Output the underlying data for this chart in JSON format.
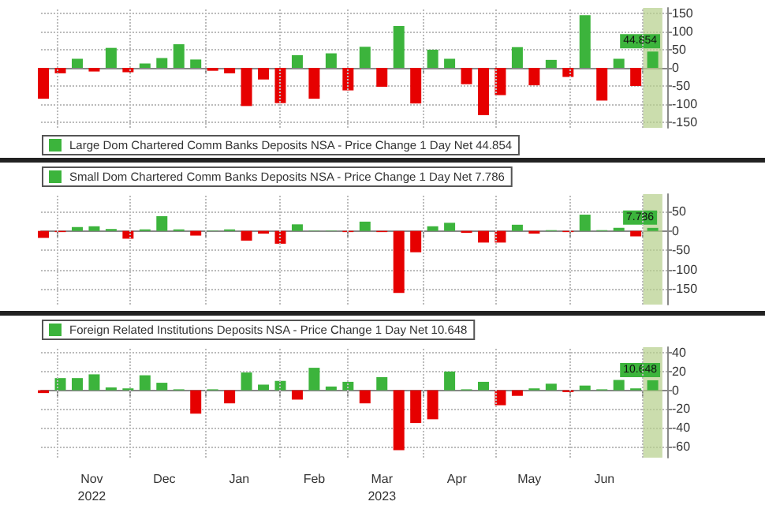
{
  "chart_data": [
    {
      "type": "bar",
      "x": [
        "2022-10-26",
        "2022-11-02",
        "2022-11-09",
        "2022-11-16",
        "2022-11-23",
        "2022-11-30",
        "2022-12-07",
        "2022-12-14",
        "2022-12-21",
        "2022-12-28",
        "2023-01-04",
        "2023-01-11",
        "2023-01-18",
        "2023-01-25",
        "2023-02-01",
        "2023-02-08",
        "2023-02-15",
        "2023-02-22",
        "2023-03-01",
        "2023-03-08",
        "2023-03-15",
        "2023-03-22",
        "2023-03-29",
        "2023-04-05",
        "2023-04-12",
        "2023-04-19",
        "2023-04-26",
        "2023-05-03",
        "2023-05-10",
        "2023-05-17",
        "2023-05-24",
        "2023-05-31",
        "2023-06-07",
        "2023-06-14",
        "2023-06-21",
        "2023-06-28",
        "2023-07-05"
      ],
      "series": [
        {
          "name": "Large Dom Chartered Comm Banks Deposits NSA - Price Change 1 Day Net 44.854",
          "color": "#3cb43c",
          "values": [
            -85,
            -15,
            25,
            -10,
            55,
            -12,
            12,
            27,
            65,
            23,
            -8,
            -15,
            -105,
            -32,
            -97,
            35,
            -85,
            40,
            -62,
            58,
            -52,
            115,
            -98,
            50,
            25,
            -45,
            -130,
            -75,
            57,
            -48,
            22,
            -25,
            145,
            -90,
            25,
            -50,
            44.854
          ],
          "colors": [
            "#e60000",
            "#e60000",
            "#3cb43c",
            "#e60000",
            "#3cb43c",
            "#e60000",
            "#3cb43c",
            "#3cb43c",
            "#3cb43c",
            "#3cb43c",
            "#e60000",
            "#e60000",
            "#e60000",
            "#e60000",
            "#e60000",
            "#3cb43c",
            "#e60000",
            "#3cb43c",
            "#e60000",
            "#3cb43c",
            "#e60000",
            "#3cb43c",
            "#e60000",
            "#3cb43c",
            "#3cb43c",
            "#e60000",
            "#e60000",
            "#e60000",
            "#3cb43c",
            "#e60000",
            "#3cb43c",
            "#e60000",
            "#3cb43c",
            "#e60000",
            "#3cb43c",
            "#e60000",
            "#3cb43c"
          ],
          "value_labels": [
            null,
            null,
            null,
            null,
            null,
            null,
            null,
            null,
            null,
            null,
            null,
            null,
            null,
            null,
            null,
            null,
            null,
            null,
            null,
            null,
            null,
            null,
            null,
            null,
            null,
            null,
            null,
            null,
            null,
            null,
            null,
            null,
            null,
            null,
            null,
            null,
            "44.854"
          ]
        }
      ],
      "xlim": [
        "2022-10-25",
        "2023-07-11"
      ],
      "xticks": [
        {
          "value": "2022-11-01",
          "label": null
        },
        {
          "value": "2022-12-01",
          "label": null
        },
        {
          "value": "2023-01-01",
          "label": null
        },
        {
          "value": "2023-02-01",
          "label": null
        },
        {
          "value": "2023-03-01",
          "label": null
        },
        {
          "value": "2023-04-01",
          "label": null
        },
        {
          "value": "2023-05-01",
          "label": null
        },
        {
          "value": "2023-06-01",
          "label": null
        },
        {
          "value": "2023-07-01",
          "label": null
        }
      ],
      "ylim": [
        -165,
        165
      ],
      "yticks": [
        -150,
        -100,
        -50,
        0,
        50,
        100,
        150
      ],
      "bands": [
        {
          "axis": "x",
          "from": "2023-07-01",
          "to": "2023-07-09",
          "color": "#b5cf8a"
        }
      ],
      "grid": true,
      "legend": "bottom left",
      "tick_labels": "y"
    },
    {
      "type": "bar",
      "x": [
        "2022-10-26",
        "2022-11-02",
        "2022-11-09",
        "2022-11-16",
        "2022-11-23",
        "2022-11-30",
        "2022-12-07",
        "2022-12-14",
        "2022-12-21",
        "2022-12-28",
        "2023-01-04",
        "2023-01-11",
        "2023-01-18",
        "2023-01-25",
        "2023-02-01",
        "2023-02-08",
        "2023-02-15",
        "2023-02-22",
        "2023-03-01",
        "2023-03-08",
        "2023-03-15",
        "2023-03-22",
        "2023-03-29",
        "2023-04-05",
        "2023-04-12",
        "2023-04-19",
        "2023-04-26",
        "2023-05-03",
        "2023-05-10",
        "2023-05-17",
        "2023-05-24",
        "2023-05-31",
        "2023-06-07",
        "2023-06-14",
        "2023-06-21",
        "2023-06-28",
        "2023-07-05"
      ],
      "series": [
        {
          "name": "Small Dom Chartered Comm Banks Deposits NSA - Price Change 1 Day Net 7.786",
          "color": "#3cb43c",
          "values": [
            -18,
            -3,
            10,
            12,
            5,
            -20,
            4,
            38,
            4,
            -12,
            1,
            4,
            -25,
            -7,
            -33,
            17,
            1,
            1,
            -3,
            24,
            -3,
            -160,
            -55,
            12,
            21,
            -5,
            -30,
            -30,
            16,
            -7,
            2,
            -3,
            42,
            2,
            8,
            -14,
            7.786
          ],
          "colors": [
            "#e60000",
            "#e60000",
            "#3cb43c",
            "#3cb43c",
            "#3cb43c",
            "#e60000",
            "#3cb43c",
            "#3cb43c",
            "#3cb43c",
            "#e60000",
            "#3cb43c",
            "#3cb43c",
            "#e60000",
            "#e60000",
            "#e60000",
            "#3cb43c",
            "#3cb43c",
            "#3cb43c",
            "#e60000",
            "#3cb43c",
            "#e60000",
            "#e60000",
            "#e60000",
            "#3cb43c",
            "#3cb43c",
            "#e60000",
            "#e60000",
            "#e60000",
            "#3cb43c",
            "#e60000",
            "#3cb43c",
            "#e60000",
            "#3cb43c",
            "#3cb43c",
            "#3cb43c",
            "#e60000",
            "#3cb43c"
          ],
          "value_labels": [
            null,
            null,
            null,
            null,
            null,
            null,
            null,
            null,
            null,
            null,
            null,
            null,
            null,
            null,
            null,
            null,
            null,
            null,
            null,
            null,
            null,
            null,
            null,
            null,
            null,
            null,
            null,
            null,
            null,
            null,
            null,
            null,
            null,
            null,
            null,
            null,
            "7.786"
          ]
        }
      ],
      "xlim": [
        "2022-10-25",
        "2023-07-11"
      ],
      "xticks": [
        {
          "value": "2022-11-01",
          "label": null
        },
        {
          "value": "2022-12-01",
          "label": null
        },
        {
          "value": "2023-01-01",
          "label": null
        },
        {
          "value": "2023-02-01",
          "label": null
        },
        {
          "value": "2023-03-01",
          "label": null
        },
        {
          "value": "2023-04-01",
          "label": null
        },
        {
          "value": "2023-05-01",
          "label": null
        },
        {
          "value": "2023-06-01",
          "label": null
        },
        {
          "value": "2023-07-01",
          "label": null
        }
      ],
      "ylim": [
        -190,
        95
      ],
      "yticks": [
        -150,
        -100,
        -50,
        0,
        50
      ],
      "bands": [
        {
          "axis": "x",
          "from": "2023-07-01",
          "to": "2023-07-09",
          "color": "#b5cf8a"
        }
      ],
      "grid": true,
      "legend": "top left",
      "tick_labels": "y"
    },
    {
      "type": "bar",
      "x": [
        "2022-10-26",
        "2022-11-02",
        "2022-11-09",
        "2022-11-16",
        "2022-11-23",
        "2022-11-30",
        "2022-12-07",
        "2022-12-14",
        "2022-12-21",
        "2022-12-28",
        "2023-01-04",
        "2023-01-11",
        "2023-01-18",
        "2023-01-25",
        "2023-02-01",
        "2023-02-08",
        "2023-02-15",
        "2023-02-22",
        "2023-03-01",
        "2023-03-08",
        "2023-03-15",
        "2023-03-22",
        "2023-03-29",
        "2023-04-05",
        "2023-04-12",
        "2023-04-19",
        "2023-04-26",
        "2023-05-03",
        "2023-05-10",
        "2023-05-17",
        "2023-05-24",
        "2023-05-31",
        "2023-06-07",
        "2023-06-14",
        "2023-06-21",
        "2023-06-28",
        "2023-07-05"
      ],
      "series": [
        {
          "name": "Foreign Related Institutions Deposits NSA - Price Change 1 Day Net 10.648",
          "color": "#3cb43c",
          "values": [
            -3,
            13,
            13,
            17,
            3,
            2,
            16,
            8,
            1,
            -25,
            1,
            -14,
            19,
            6,
            10,
            -10,
            24,
            4,
            9,
            -14,
            14,
            -64,
            -35,
            -31,
            20,
            1,
            9,
            -16,
            -6,
            2,
            7,
            -2,
            5,
            1,
            11,
            2,
            10.648
          ],
          "colors": [
            "#e60000",
            "#3cb43c",
            "#3cb43c",
            "#3cb43c",
            "#3cb43c",
            "#3cb43c",
            "#3cb43c",
            "#3cb43c",
            "#3cb43c",
            "#e60000",
            "#3cb43c",
            "#e60000",
            "#3cb43c",
            "#3cb43c",
            "#3cb43c",
            "#e60000",
            "#3cb43c",
            "#3cb43c",
            "#3cb43c",
            "#e60000",
            "#3cb43c",
            "#e60000",
            "#e60000",
            "#e60000",
            "#3cb43c",
            "#3cb43c",
            "#3cb43c",
            "#e60000",
            "#e60000",
            "#3cb43c",
            "#3cb43c",
            "#e60000",
            "#3cb43c",
            "#3cb43c",
            "#3cb43c",
            "#3cb43c",
            "#3cb43c"
          ],
          "value_labels": [
            null,
            null,
            null,
            null,
            null,
            null,
            null,
            null,
            null,
            null,
            null,
            null,
            null,
            null,
            null,
            null,
            null,
            null,
            null,
            null,
            null,
            null,
            null,
            null,
            null,
            null,
            null,
            null,
            null,
            null,
            null,
            null,
            null,
            null,
            null,
            null,
            "10.648"
          ]
        }
      ],
      "xlim": [
        "2022-10-25",
        "2023-07-11"
      ],
      "xticks": [
        {
          "value": "2022-11-01",
          "label": null
        },
        {
          "value": "2022-11-15",
          "label": "Nov\n2022"
        },
        {
          "value": "2022-12-01",
          "label": null
        },
        {
          "value": "2022-12-15",
          "label": "Dec"
        },
        {
          "value": "2023-01-01",
          "label": null
        },
        {
          "value": "2023-01-15",
          "label": "Jan"
        },
        {
          "value": "2023-02-01",
          "label": null
        },
        {
          "value": "2023-02-15",
          "label": "Feb"
        },
        {
          "value": "2023-03-01",
          "label": null
        },
        {
          "value": "2023-03-15",
          "label": "Mar\n2023"
        },
        {
          "value": "2023-04-01",
          "label": null
        },
        {
          "value": "2023-04-15",
          "label": "Apr"
        },
        {
          "value": "2023-05-01",
          "label": null
        },
        {
          "value": "2023-05-15",
          "label": "May"
        },
        {
          "value": "2023-06-01",
          "label": null
        },
        {
          "value": "2023-06-15",
          "label": "Jun"
        },
        {
          "value": "2023-07-01",
          "label": null
        }
      ],
      "ylim": [
        -72,
        46
      ],
      "yticks": [
        -60,
        -40,
        -20,
        0,
        20,
        40
      ],
      "bands": [
        {
          "axis": "x",
          "from": "2023-07-01",
          "to": "2023-07-09",
          "color": "#b5cf8a"
        }
      ],
      "grid": true,
      "legend": "top left"
    }
  ]
}
